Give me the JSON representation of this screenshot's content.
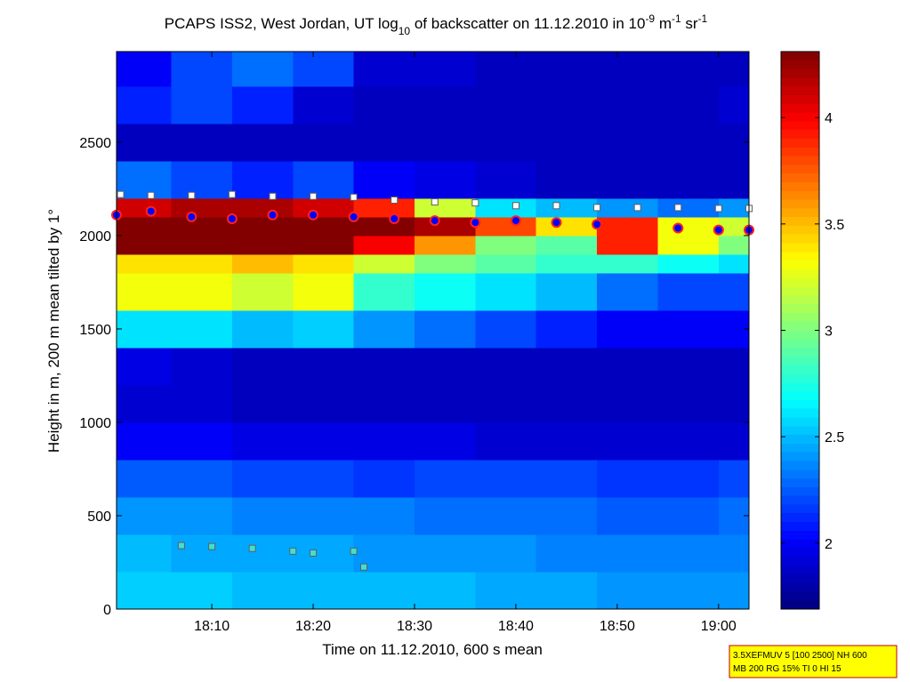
{
  "chart_data": {
    "type": "heatmap",
    "title_parts": [
      {
        "text": "PCAPS ISS2, West Jordan, UT log"
      },
      {
        "text": "10",
        "shift": "sub"
      },
      {
        "text": " of backscatter on 11.12.2010 in 10"
      },
      {
        "text": "-9",
        "shift": "super"
      },
      {
        "text": " m"
      },
      {
        "text": "-1",
        "shift": "super"
      },
      {
        "text": " sr"
      },
      {
        "text": "-1",
        "shift": "super"
      }
    ],
    "x_label": "Time on 11.12.2010, 600 s mean",
    "y_label": "Height in m, 200 m mean tilted by 1°",
    "xlim": [
      0.6,
      63
    ],
    "xticks": [
      {
        "value": 10,
        "label": "18:10"
      },
      {
        "value": 20,
        "label": "18:20"
      },
      {
        "value": 30,
        "label": "18:30"
      },
      {
        "value": 40,
        "label": "18:40"
      },
      {
        "value": 50,
        "label": "18:50"
      },
      {
        "value": 60,
        "label": "19:00"
      }
    ],
    "ylim": [
      0,
      2985
    ],
    "yticks": [
      0,
      500,
      1000,
      1500,
      2000,
      2500
    ],
    "clim": [
      1.69,
      4.31
    ],
    "cticks": [
      2,
      2.5,
      3,
      3.5,
      4
    ],
    "colormap": "jet",
    "x_edges": [
      0.6,
      6,
      12,
      18,
      24,
      30,
      36,
      42,
      48,
      54,
      60,
      63
    ],
    "y_edges": [
      0,
      200,
      400,
      600,
      800,
      1000,
      1200,
      1400,
      1600,
      1800,
      1900,
      2000,
      2100,
      2200,
      2400,
      2600,
      2800,
      2985
    ],
    "z": [
      [
        2.55,
        2.55,
        2.5,
        2.5,
        2.5,
        2.5,
        2.45,
        2.45,
        2.4,
        2.4,
        2.4
      ],
      [
        2.5,
        2.45,
        2.45,
        2.45,
        2.4,
        2.4,
        2.4,
        2.35,
        2.35,
        2.35,
        2.35
      ],
      [
        2.4,
        2.4,
        2.35,
        2.35,
        2.35,
        2.3,
        2.3,
        2.3,
        2.25,
        2.25,
        2.3
      ],
      [
        2.25,
        2.25,
        2.2,
        2.2,
        2.15,
        2.2,
        2.2,
        2.2,
        2.15,
        2.15,
        2.2
      ],
      [
        2.0,
        2.0,
        1.95,
        1.95,
        1.95,
        1.95,
        1.9,
        1.9,
        1.9,
        1.9,
        1.9
      ],
      [
        1.9,
        1.9,
        1.85,
        1.85,
        1.85,
        1.85,
        1.85,
        1.85,
        1.85,
        1.85,
        1.85
      ],
      [
        1.95,
        1.9,
        1.85,
        1.85,
        1.85,
        1.85,
        1.85,
        1.85,
        1.85,
        1.85,
        1.85
      ],
      [
        2.6,
        2.6,
        2.5,
        2.55,
        2.4,
        2.3,
        2.2,
        2.1,
        2.0,
        2.0,
        2.0
      ],
      [
        3.3,
        3.3,
        3.2,
        3.3,
        2.8,
        2.7,
        2.6,
        2.5,
        2.3,
        2.2,
        2.2
      ],
      [
        3.4,
        3.4,
        3.5,
        3.4,
        3.2,
        3.0,
        2.9,
        2.8,
        2.8,
        2.7,
        2.6
      ],
      [
        4.3,
        4.3,
        4.3,
        4.3,
        4.0,
        3.6,
        3.0,
        2.9,
        3.9,
        3.3,
        3.0
      ],
      [
        4.3,
        4.3,
        4.3,
        4.3,
        4.3,
        4.2,
        3.8,
        3.4,
        3.9,
        3.3,
        3.2
      ],
      [
        4.1,
        4.2,
        4.2,
        4.1,
        3.9,
        3.2,
        2.6,
        2.5,
        2.4,
        2.3,
        2.4
      ],
      [
        2.3,
        2.2,
        2.1,
        2.2,
        2.0,
        1.95,
        1.9,
        1.85,
        1.85,
        1.85,
        1.85
      ],
      [
        1.85,
        1.85,
        1.85,
        1.85,
        1.85,
        1.85,
        1.85,
        1.85,
        1.85,
        1.85,
        1.85
      ],
      [
        2.1,
        2.2,
        2.1,
        1.9,
        1.85,
        1.85,
        1.85,
        1.85,
        1.85,
        1.85,
        1.9
      ],
      [
        2.0,
        2.2,
        2.3,
        2.2,
        1.9,
        1.9,
        1.85,
        1.85,
        1.85,
        1.85,
        1.85
      ]
    ],
    "series": [
      {
        "color": "#0000ff",
        "edge": "#ff2020",
        "marker": "circle",
        "x": [
          0.6,
          4,
          8,
          12,
          16,
          20,
          24,
          28,
          32,
          36,
          40,
          44,
          48,
          52,
          56,
          60,
          63
        ],
        "values": [
          2110,
          2130,
          2100,
          2090,
          2110,
          2110,
          2100,
          2090,
          2080,
          2070,
          2080,
          2070,
          2060,
          null,
          2040,
          2030,
          2030
        ]
      },
      {
        "color": "#40e0d0",
        "edge": "#606060",
        "marker": "square",
        "x": [
          7,
          10,
          14,
          18,
          20,
          24,
          25
        ],
        "values": [
          340,
          335,
          325,
          310,
          300,
          310,
          225
        ]
      },
      {
        "color": "#ffffff",
        "edge": "#606060",
        "marker": "square",
        "x": [
          1,
          4,
          8,
          12,
          16,
          20,
          24,
          28,
          32,
          36,
          40,
          44,
          48,
          52,
          56,
          60,
          63
        ],
        "values": [
          2220,
          2215,
          2215,
          2220,
          2210,
          2210,
          2205,
          2190,
          2180,
          2175,
          2160,
          2160,
          2150,
          2150,
          2150,
          2145,
          2145
        ]
      }
    ],
    "annotation_lines": [
      "3.5XEFMUV 5 [100 2500] NH 600",
      "MB 200 RG 15% TI 0 HI 15"
    ]
  }
}
